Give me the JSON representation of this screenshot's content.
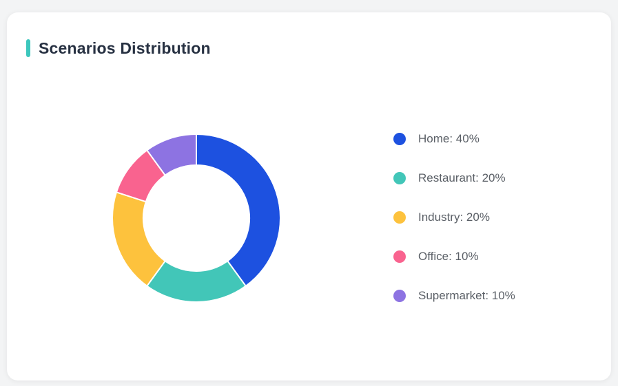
{
  "card": {
    "title": "Scenarios Distribution",
    "accent_color": "#3cc7bd"
  },
  "chart_data": {
    "type": "pie",
    "subtype": "donut",
    "title": "Scenarios Distribution",
    "labels": [
      "Home",
      "Restaurant",
      "Industry",
      "Office",
      "Supermarket"
    ],
    "values": [
      40,
      20,
      20,
      10,
      10
    ],
    "unit": "%",
    "colors": [
      "#1d51e0",
      "#42c6b8",
      "#fdc23d",
      "#f9638f",
      "#8d73e2"
    ],
    "start_angle_deg": 0,
    "direction": "clockwise",
    "inner_radius_ratio": 0.63,
    "separator_color": "#ffffff",
    "legend_position": "right"
  },
  "legend": {
    "items": [
      {
        "label": "Home: 40%",
        "color": "#1d51e0"
      },
      {
        "label": "Restaurant: 20%",
        "color": "#42c6b8"
      },
      {
        "label": "Industry: 20%",
        "color": "#fdc23d"
      },
      {
        "label": "Office: 10%",
        "color": "#f9638f"
      },
      {
        "label": "Supermarket: 10%",
        "color": "#8d73e2"
      }
    ]
  }
}
